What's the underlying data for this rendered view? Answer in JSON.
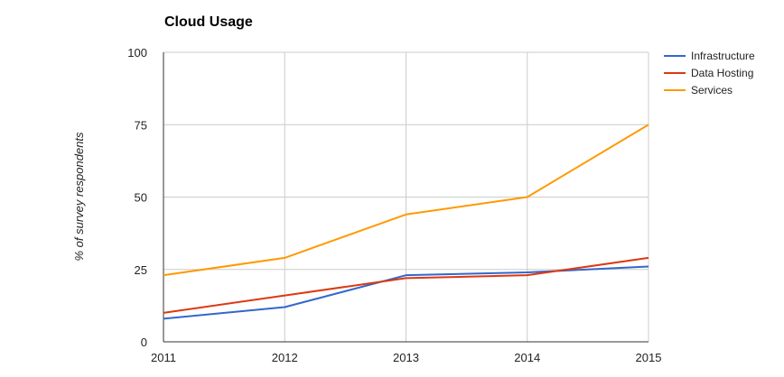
{
  "chart_data": {
    "type": "line",
    "title": "Cloud Usage",
    "xlabel": "",
    "ylabel": "% of survey respondents",
    "x": [
      "2011",
      "2012",
      "2013",
      "2014",
      "2015"
    ],
    "ylim": [
      0,
      100
    ],
    "yticks": [
      0,
      25,
      50,
      75,
      100
    ],
    "grid": true,
    "legend_position": "right",
    "series": [
      {
        "name": "Infrastructure",
        "color": "#3366cc",
        "values": [
          8,
          12,
          23,
          24,
          26
        ]
      },
      {
        "name": "Data Hosting",
        "color": "#dc3912",
        "values": [
          10,
          16,
          22,
          23,
          29
        ]
      },
      {
        "name": "Services",
        "color": "#ff9900",
        "values": [
          23,
          29,
          44,
          50,
          75
        ]
      }
    ]
  }
}
